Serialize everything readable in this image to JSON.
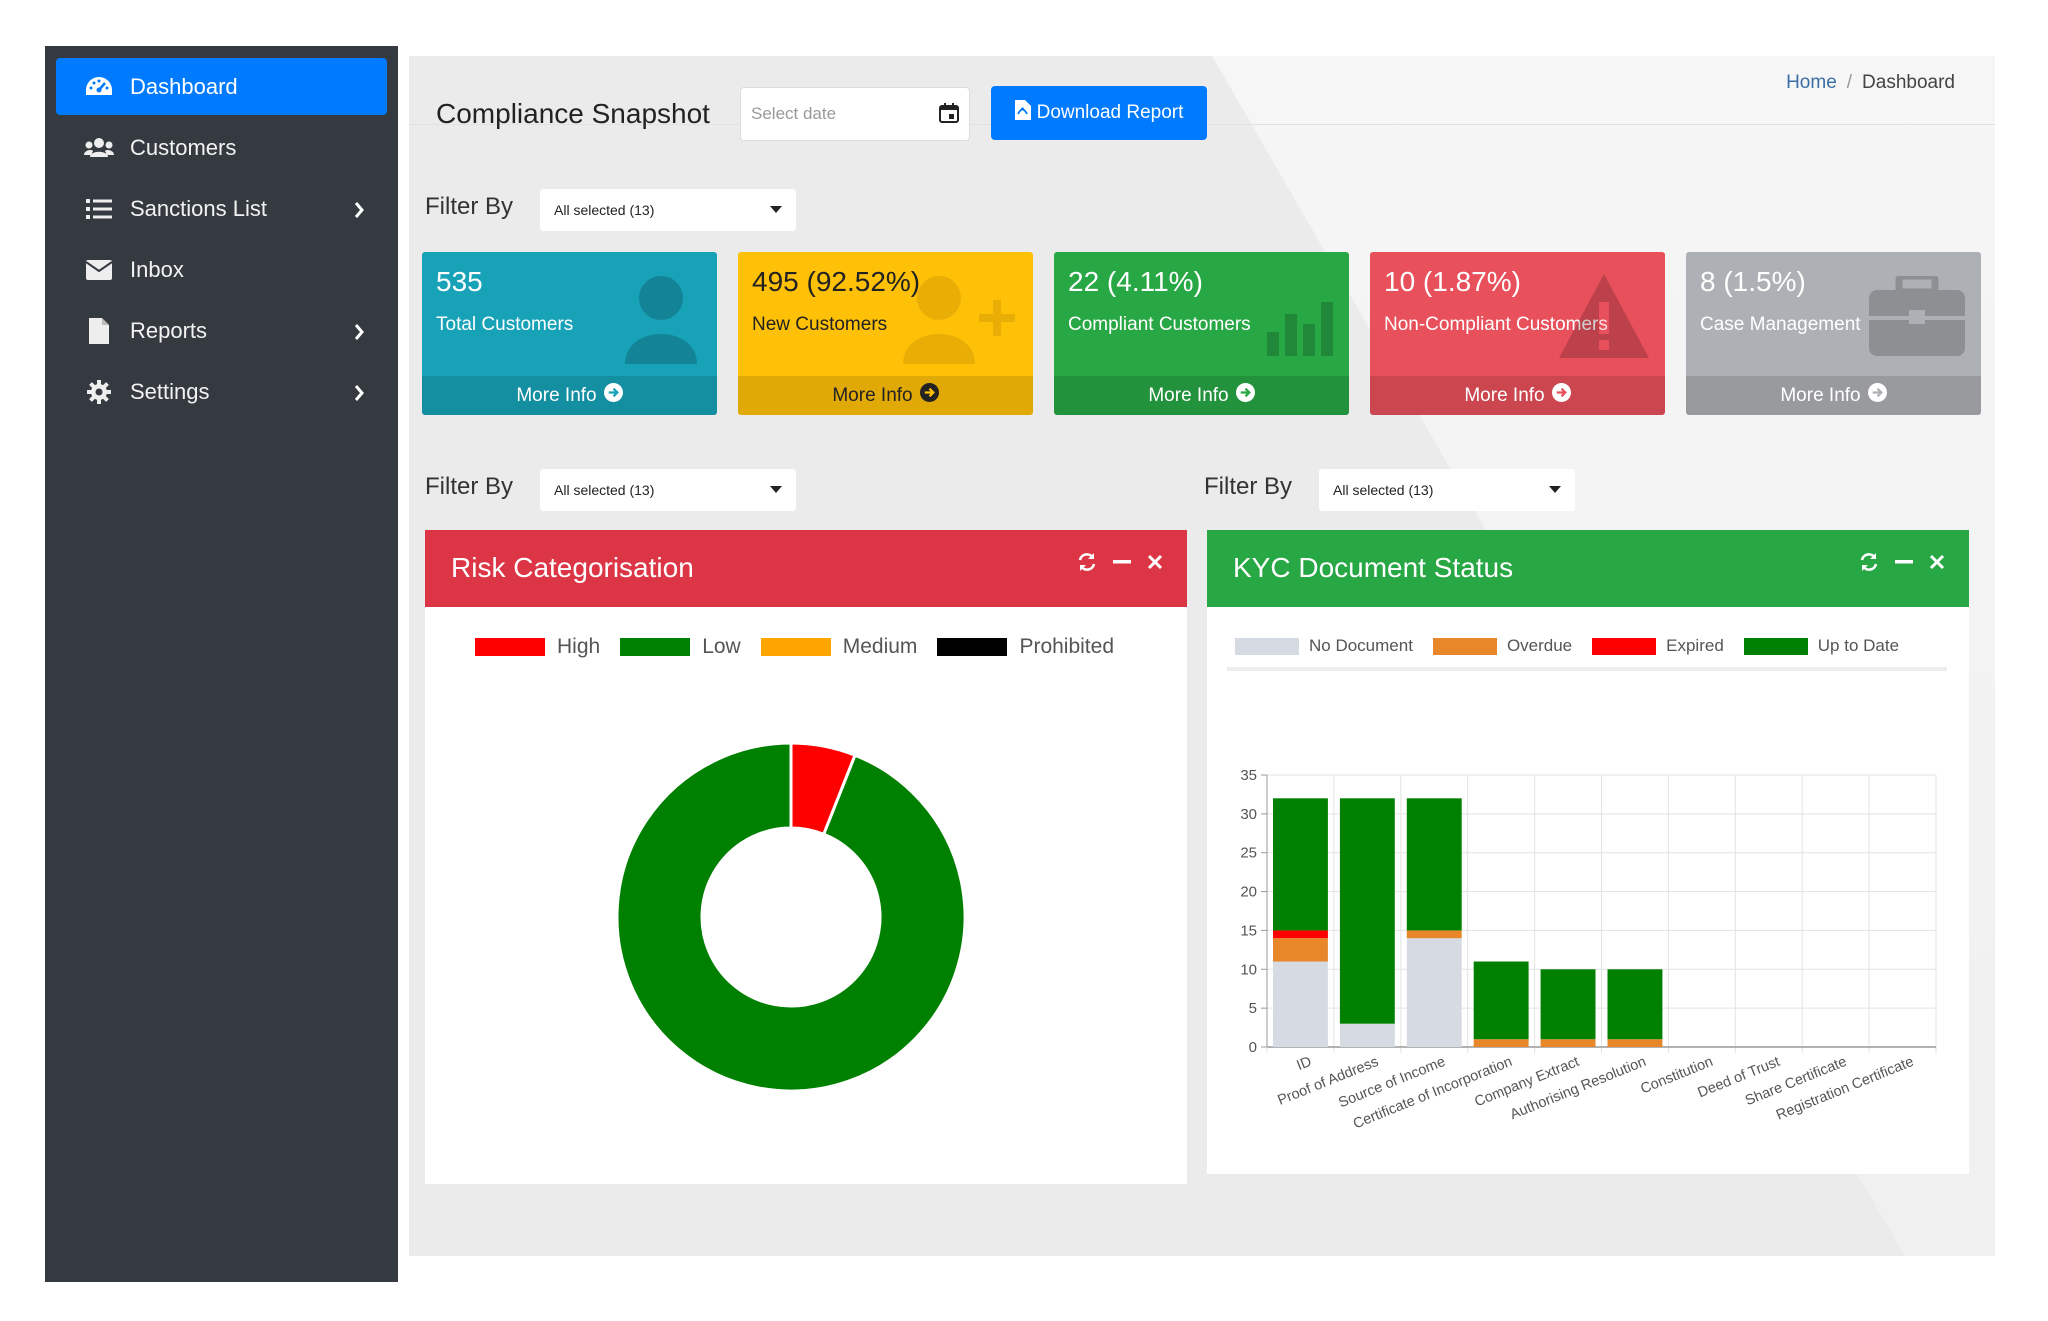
{
  "sidebar": {
    "items": [
      {
        "label": "Dashboard",
        "icon": "tachometer-icon",
        "active": true,
        "has_submenu": false
      },
      {
        "label": "Customers",
        "icon": "users-icon",
        "active": false,
        "has_submenu": false
      },
      {
        "label": "Sanctions List",
        "icon": "list-icon",
        "active": false,
        "has_submenu": true
      },
      {
        "label": "Inbox",
        "icon": "envelope-icon",
        "active": false,
        "has_submenu": false
      },
      {
        "label": "Reports",
        "icon": "file-icon",
        "active": false,
        "has_submenu": true
      },
      {
        "label": "Settings",
        "icon": "gear-icon",
        "active": false,
        "has_submenu": true
      }
    ]
  },
  "header": {
    "title": "Compliance Snapshot",
    "date_placeholder": "Select date",
    "download_label": "Download Report",
    "breadcrumb": {
      "home": "Home",
      "separator": "/",
      "current": "Dashboard"
    }
  },
  "filters": {
    "top": {
      "label": "Filter By",
      "value": "All selected (13)"
    },
    "risk": {
      "label": "Filter By",
      "value": "All selected (13)"
    },
    "kyc": {
      "label": "Filter By",
      "value": "All selected (13)"
    }
  },
  "stats": [
    {
      "value": "535",
      "label": "Total Customers",
      "more": "More Info",
      "color": "#17a2b8",
      "icon": "user-icon"
    },
    {
      "value": "495 (92.52%)",
      "label": "New Customers",
      "more": "More Info",
      "color": "#ffc107",
      "icon": "user-plus-icon"
    },
    {
      "value": "22 (4.11%)",
      "label": "Compliant Customers",
      "more": "More Info",
      "color": "#28a745",
      "icon": "bar-chart-icon"
    },
    {
      "value": "10 (1.87%)",
      "label": "Non-Compliant Customers",
      "more": "More Info",
      "color": "#e8505b",
      "icon": "warning-icon"
    },
    {
      "value": "8 (1.5%)",
      "label": "Case Management",
      "more": "More Info",
      "color": "#adb0b4",
      "icon": "briefcase-icon"
    }
  ],
  "risk_card": {
    "title": "Risk Categorisation",
    "color": "#dc3545"
  },
  "kyc_card": {
    "title": "KYC Document Status",
    "color": "#28a745"
  },
  "chart_data": [
    {
      "type": "pie",
      "variant": "doughnut",
      "legend": "top",
      "categories": [
        "High",
        "Low",
        "Medium",
        "Prohibited"
      ],
      "values": [
        6,
        94,
        0,
        0
      ],
      "colors": [
        "#ff0000",
        "#008000",
        "#ffa500",
        "#000000"
      ]
    },
    {
      "type": "bar",
      "stacked": true,
      "legend": "top",
      "categories": [
        "ID",
        "Proof of Address",
        "Source of Income",
        "Certificate of Incorporation",
        "Company Extract",
        "Authorising Resolution",
        "Constitution",
        "Deed of Trust",
        "Share Certificate",
        "Registration Certificate"
      ],
      "series": [
        {
          "name": "No Document",
          "color": "#d6dbe3",
          "values": [
            11,
            3,
            14,
            0,
            0,
            0,
            0,
            0,
            0,
            0
          ]
        },
        {
          "name": "Overdue",
          "color": "#e8872a",
          "values": [
            3,
            0,
            1,
            1,
            1,
            1,
            0,
            0,
            0,
            0
          ]
        },
        {
          "name": "Expired",
          "color": "#ff0000",
          "values": [
            1,
            0,
            0,
            0,
            0,
            0,
            0,
            0,
            0,
            0
          ]
        },
        {
          "name": "Up to Date",
          "color": "#008000",
          "values": [
            17,
            29,
            17,
            10,
            9,
            9,
            0,
            0,
            0,
            0
          ]
        }
      ],
      "ylim": [
        0,
        35
      ],
      "yticks": [
        0,
        5,
        10,
        15,
        20,
        25,
        30,
        35
      ],
      "grid": true
    }
  ]
}
